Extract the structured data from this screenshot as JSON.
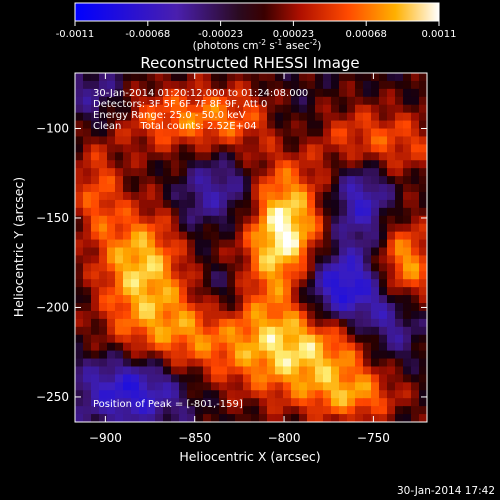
{
  "colorbar": {
    "ticks": [
      "-0.0011",
      "-0.00068",
      "-0.00023",
      "0.00023",
      "0.00068",
      "0.0011"
    ],
    "units_text": "(photons cm",
    "units_sup1": "-2",
    "units_mid": " s",
    "units_sup2": "-1",
    "units_mid2": " asec",
    "units_sup3": "-2",
    "units_end": ")"
  },
  "annotations": {
    "time_range": "30-Jan-2014 01:20:12.000 to 01:24:08.000",
    "detectors": "Detectors: 3F 5F 6F 7F 8F 9F, Att 0",
    "energy": "Energy Range: 25.0 - 50.0 keV",
    "clean": "Clean      Total counts: 2.52E+04",
    "peak": "Position of Peak = [-801,-159]"
  },
  "footer": {
    "timestamp": "30-Jan-2014 17:42"
  },
  "chart_data": {
    "type": "heatmap",
    "title": "Reconstructed RHESSI Image",
    "xlabel": "Heliocentric X (arcsec)",
    "ylabel": "Heliocentric Y (arcsec)",
    "xlim": [
      -917,
      -720
    ],
    "ylim": [
      -264,
      -69
    ],
    "x_ticks": [
      -900,
      -850,
      -800,
      -750
    ],
    "y_ticks": [
      -100,
      -150,
      -200,
      -250
    ],
    "colorbar_range": [
      -0.0011,
      0.0011
    ],
    "colormap": "blue-purple-red-orange-yellow-white",
    "peak_position": [
      -801,
      -159
    ]
  }
}
